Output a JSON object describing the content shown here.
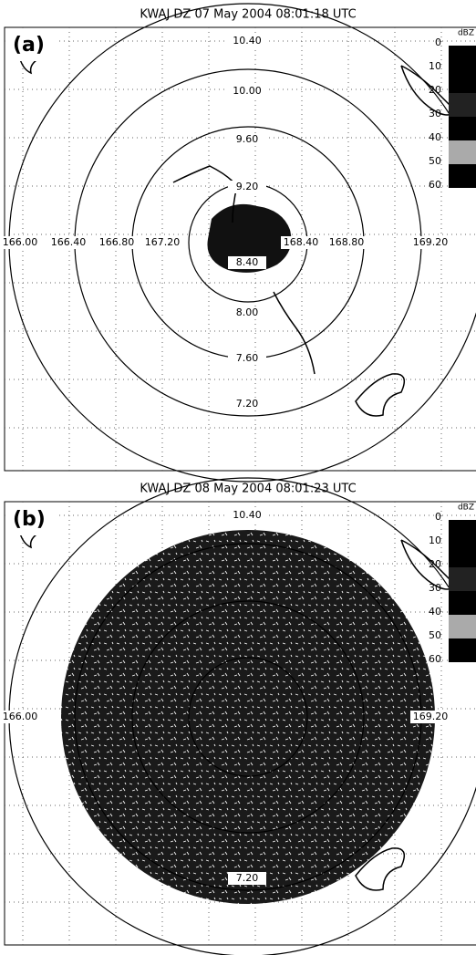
{
  "panels": [
    {
      "title": "KWAJ DZ  07 May 2004  08:01:18 UTC",
      "label": "(a)",
      "legend_unit": "dBZ",
      "legend_values": [
        "0",
        "10",
        "20",
        "30",
        "40",
        "50",
        "60"
      ],
      "lat_labels": [
        "10.40",
        "10.00",
        "9.60",
        "9.20",
        "8.40",
        "8.00",
        "7.60",
        "7.20"
      ],
      "lon_labels": [
        "166.00",
        "166.40",
        "166.80",
        "167.20",
        "168.40",
        "168.80",
        "169.20"
      ]
    },
    {
      "title": "KWAJ DZ  08 May 2004  08:01:23 UTC",
      "label": "(b)",
      "legend_unit": "dBZ",
      "legend_values": [
        "0",
        "10",
        "20",
        "30",
        "40",
        "50",
        "60"
      ],
      "lat_labels": [
        "10.40",
        "7.20"
      ],
      "lon_labels": [
        "166.00",
        "169.20"
      ]
    }
  ]
}
